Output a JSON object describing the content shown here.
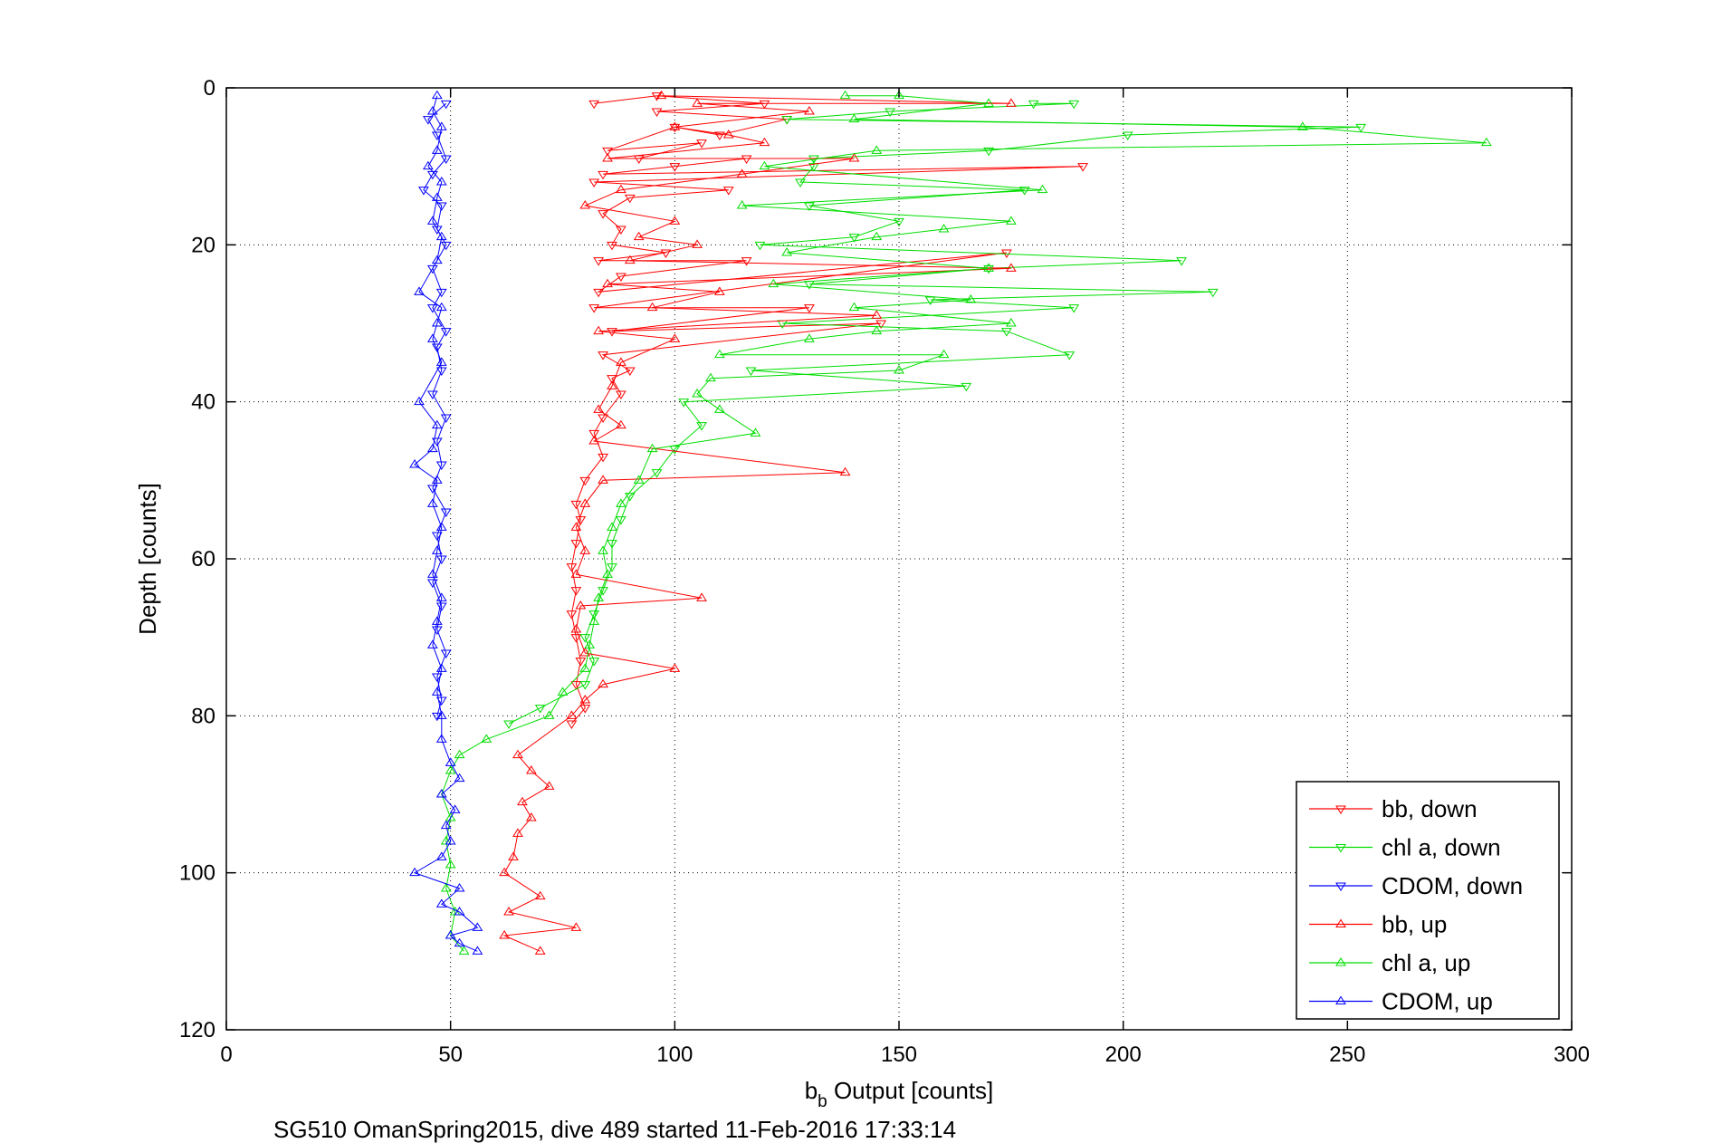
{
  "chart_data": {
    "type": "scatter",
    "xlabel_main": "b",
    "xlabel_sub": "b",
    "xlabel_rest": " Output [counts]",
    "ylabel": "Depth [counts]",
    "footer": "SG510 OmanSpring2015, dive 489 started 11-Feb-2016 17:33:14",
    "xlim": [
      0,
      300
    ],
    "ylim": [
      0,
      120
    ],
    "y_reversed": true,
    "grid": true,
    "legend_position": "bottom-right",
    "x_ticks": [
      "0",
      "50",
      "100",
      "150",
      "200",
      "250",
      "300"
    ],
    "y_ticks": [
      "0",
      "20",
      "40",
      "60",
      "80",
      "100",
      "120"
    ],
    "series": [
      {
        "name": "bb, down",
        "color": "#ff0000",
        "marker": "down",
        "points": [
          [
            82,
            2
          ],
          [
            96,
            1
          ],
          [
            120,
            2
          ],
          [
            96,
            3
          ],
          [
            125,
            4
          ],
          [
            110,
            6
          ],
          [
            100,
            5
          ],
          [
            85,
            8
          ],
          [
            106,
            7
          ],
          [
            92,
            9
          ],
          [
            116,
            9
          ],
          [
            100,
            10
          ],
          [
            84,
            11
          ],
          [
            191,
            10
          ],
          [
            82,
            12
          ],
          [
            112,
            13
          ],
          [
            90,
            14
          ],
          [
            84,
            16
          ],
          [
            88,
            18
          ],
          [
            86,
            20
          ],
          [
            98,
            21
          ],
          [
            83,
            22
          ],
          [
            116,
            22
          ],
          [
            88,
            24
          ],
          [
            83,
            26
          ],
          [
            174,
            21
          ],
          [
            82,
            28
          ],
          [
            130,
            28
          ],
          [
            86,
            31
          ],
          [
            146,
            30
          ],
          [
            84,
            34
          ],
          [
            90,
            36
          ],
          [
            86,
            37
          ],
          [
            88,
            39
          ],
          [
            84,
            42
          ],
          [
            82,
            44
          ],
          [
            84,
            47
          ],
          [
            80,
            50
          ],
          [
            78,
            53
          ],
          [
            79,
            55
          ],
          [
            78,
            58
          ],
          [
            77,
            61
          ],
          [
            78,
            64
          ],
          [
            77,
            67
          ],
          [
            78,
            70
          ],
          [
            79,
            73
          ],
          [
            78,
            76
          ],
          [
            80,
            79
          ],
          [
            77,
            81
          ]
        ]
      },
      {
        "name": "chl a, down",
        "color": "#00dd00",
        "marker": "down",
        "points": [
          [
            180,
            2
          ],
          [
            189,
            2
          ],
          [
            148,
            3
          ],
          [
            125,
            4
          ],
          [
            253,
            5
          ],
          [
            201,
            6
          ],
          [
            170,
            8
          ],
          [
            131,
            9
          ],
          [
            131,
            10
          ],
          [
            128,
            12
          ],
          [
            178,
            13
          ],
          [
            130,
            15
          ],
          [
            150,
            17
          ],
          [
            140,
            19
          ],
          [
            119,
            20
          ],
          [
            213,
            22
          ],
          [
            170,
            23
          ],
          [
            130,
            25
          ],
          [
            220,
            26
          ],
          [
            157,
            27
          ],
          [
            189,
            28
          ],
          [
            124,
            30
          ],
          [
            174,
            31
          ],
          [
            188,
            34
          ],
          [
            117,
            36
          ],
          [
            165,
            38
          ],
          [
            102,
            40
          ],
          [
            106,
            43
          ],
          [
            100,
            46
          ],
          [
            96,
            49
          ],
          [
            90,
            52
          ],
          [
            88,
            55
          ],
          [
            86,
            58
          ],
          [
            86,
            61
          ],
          [
            84,
            64
          ],
          [
            82,
            67
          ],
          [
            80,
            70
          ],
          [
            82,
            73
          ],
          [
            80,
            76
          ],
          [
            70,
            79
          ],
          [
            63,
            81
          ]
        ]
      },
      {
        "name": "CDOM, down",
        "color": "#0000ff",
        "marker": "down",
        "points": [
          [
            49,
            2
          ],
          [
            45,
            4
          ],
          [
            47,
            6
          ],
          [
            49,
            9
          ],
          [
            46,
            11
          ],
          [
            44,
            13
          ],
          [
            48,
            15
          ],
          [
            47,
            18
          ],
          [
            49,
            20
          ],
          [
            46,
            23
          ],
          [
            48,
            26
          ],
          [
            46,
            28
          ],
          [
            49,
            31
          ],
          [
            47,
            33
          ],
          [
            48,
            36
          ],
          [
            46,
            39
          ],
          [
            49,
            42
          ],
          [
            47,
            45
          ],
          [
            48,
            48
          ],
          [
            46,
            51
          ],
          [
            49,
            54
          ],
          [
            47,
            57
          ],
          [
            48,
            60
          ],
          [
            46,
            63
          ],
          [
            48,
            66
          ],
          [
            47,
            69
          ],
          [
            49,
            72
          ],
          [
            47,
            75
          ],
          [
            48,
            78
          ],
          [
            47,
            80
          ]
        ]
      },
      {
        "name": "bb, up",
        "color": "#ff0000",
        "marker": "up",
        "points": [
          [
            97,
            1
          ],
          [
            175,
            2
          ],
          [
            105,
            2
          ],
          [
            130,
            3
          ],
          [
            100,
            5
          ],
          [
            112,
            6
          ],
          [
            120,
            7
          ],
          [
            85,
            9
          ],
          [
            140,
            9
          ],
          [
            115,
            11
          ],
          [
            88,
            13
          ],
          [
            80,
            15
          ],
          [
            100,
            17
          ],
          [
            92,
            19
          ],
          [
            105,
            20
          ],
          [
            90,
            22
          ],
          [
            175,
            23
          ],
          [
            85,
            25
          ],
          [
            110,
            26
          ],
          [
            95,
            28
          ],
          [
            145,
            29
          ],
          [
            83,
            31
          ],
          [
            100,
            32
          ],
          [
            88,
            35
          ],
          [
            86,
            38
          ],
          [
            83,
            41
          ],
          [
            88,
            43
          ],
          [
            82,
            45
          ],
          [
            138,
            49
          ],
          [
            84,
            50
          ],
          [
            80,
            53
          ],
          [
            78,
            56
          ],
          [
            80,
            59
          ],
          [
            78,
            62
          ],
          [
            106,
            65
          ],
          [
            79,
            66
          ],
          [
            78,
            69
          ],
          [
            80,
            72
          ],
          [
            100,
            74
          ],
          [
            84,
            76
          ],
          [
            80,
            78
          ],
          [
            77,
            80
          ],
          [
            65,
            85
          ],
          [
            68,
            87
          ],
          [
            72,
            89
          ],
          [
            66,
            91
          ],
          [
            68,
            93
          ],
          [
            65,
            95
          ],
          [
            64,
            98
          ],
          [
            62,
            100
          ],
          [
            70,
            103
          ],
          [
            63,
            105
          ],
          [
            78,
            107
          ],
          [
            62,
            108
          ],
          [
            70,
            110
          ]
        ]
      },
      {
        "name": "chl a, up",
        "color": "#00dd00",
        "marker": "up",
        "points": [
          [
            138,
            1
          ],
          [
            150,
            1
          ],
          [
            170,
            2
          ],
          [
            140,
            4
          ],
          [
            240,
            5
          ],
          [
            281,
            7
          ],
          [
            145,
            8
          ],
          [
            120,
            10
          ],
          [
            182,
            13
          ],
          [
            115,
            15
          ],
          [
            175,
            17
          ],
          [
            160,
            18
          ],
          [
            145,
            19
          ],
          [
            125,
            21
          ],
          [
            170,
            23
          ],
          [
            122,
            25
          ],
          [
            166,
            27
          ],
          [
            140,
            28
          ],
          [
            175,
            30
          ],
          [
            145,
            31
          ],
          [
            130,
            32
          ],
          [
            110,
            34
          ],
          [
            160,
            34
          ],
          [
            150,
            36
          ],
          [
            108,
            37
          ],
          [
            105,
            39
          ],
          [
            110,
            41
          ],
          [
            118,
            44
          ],
          [
            95,
            46
          ],
          [
            92,
            50
          ],
          [
            88,
            53
          ],
          [
            86,
            56
          ],
          [
            84,
            59
          ],
          [
            85,
            62
          ],
          [
            83,
            65
          ],
          [
            82,
            68
          ],
          [
            81,
            71
          ],
          [
            80,
            74
          ],
          [
            75,
            77
          ],
          [
            72,
            80
          ],
          [
            58,
            83
          ],
          [
            52,
            85
          ],
          [
            50,
            87
          ],
          [
            48,
            90
          ],
          [
            50,
            93
          ],
          [
            49,
            96
          ],
          [
            50,
            99
          ],
          [
            49,
            102
          ],
          [
            51,
            105
          ],
          [
            50,
            108
          ],
          [
            53,
            110
          ]
        ]
      },
      {
        "name": "CDOM, up",
        "color": "#0000ff",
        "marker": "up",
        "points": [
          [
            47,
            1
          ],
          [
            46,
            3
          ],
          [
            48,
            5
          ],
          [
            47,
            8
          ],
          [
            45,
            10
          ],
          [
            48,
            12
          ],
          [
            47,
            14
          ],
          [
            46,
            17
          ],
          [
            48,
            19
          ],
          [
            47,
            22
          ],
          [
            43,
            26
          ],
          [
            48,
            28
          ],
          [
            47,
            30
          ],
          [
            46,
            32
          ],
          [
            48,
            35
          ],
          [
            43,
            40
          ],
          [
            47,
            43
          ],
          [
            46,
            46
          ],
          [
            42,
            48
          ],
          [
            47,
            50
          ],
          [
            46,
            53
          ],
          [
            48,
            56
          ],
          [
            47,
            59
          ],
          [
            46,
            62
          ],
          [
            48,
            65
          ],
          [
            47,
            68
          ],
          [
            46,
            71
          ],
          [
            48,
            74
          ],
          [
            47,
            77
          ],
          [
            48,
            80
          ],
          [
            48,
            83
          ],
          [
            50,
            86
          ],
          [
            52,
            88
          ],
          [
            48,
            90
          ],
          [
            51,
            92
          ],
          [
            49,
            94
          ],
          [
            50,
            96
          ],
          [
            48,
            98
          ],
          [
            42,
            100
          ],
          [
            52,
            102
          ],
          [
            48,
            104
          ],
          [
            52,
            105
          ],
          [
            56,
            107
          ],
          [
            50,
            108
          ],
          [
            52,
            109
          ],
          [
            56,
            110
          ]
        ]
      }
    ]
  }
}
